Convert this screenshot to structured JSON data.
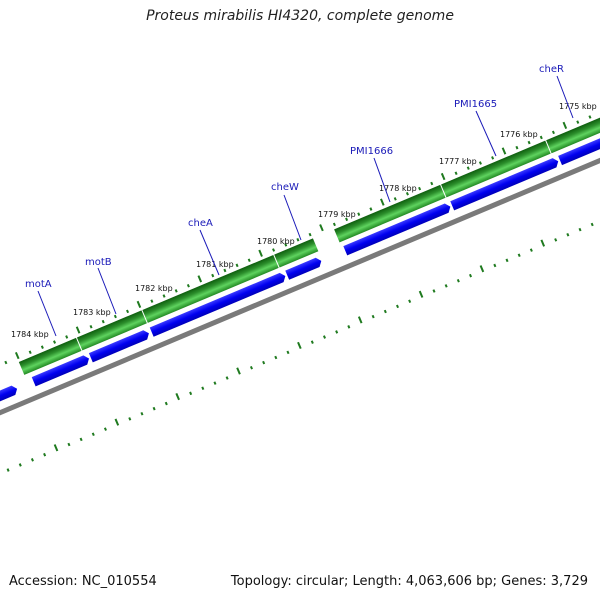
{
  "map": {
    "title": "Proteus mirabilis HI4320, complete genome",
    "accession_label": "Accession: NC_010554",
    "summary_label": "Topology: circular; Length: 4,063,606 bp; Genes: 3,729"
  },
  "colors": {
    "forward_cds": "#1f7a1f",
    "reverse_cds": "#0a0aff",
    "backbone": "#777777",
    "ticks": "#1f7a1f",
    "gene_labels": "#1a1ab8"
  },
  "kbp_labels": [
    "1775 kbp",
    "1776 kbp",
    "1777 kbp",
    "1778 kbp",
    "1779 kbp",
    "1780 kbp",
    "1781 kbp",
    "1782 kbp",
    "1783 kbp",
    "1784 kbp"
  ],
  "gene_labels": [
    "cheR",
    "PMI1665",
    "PMI1666",
    "cheW",
    "cheA",
    "motB",
    "motA"
  ]
}
